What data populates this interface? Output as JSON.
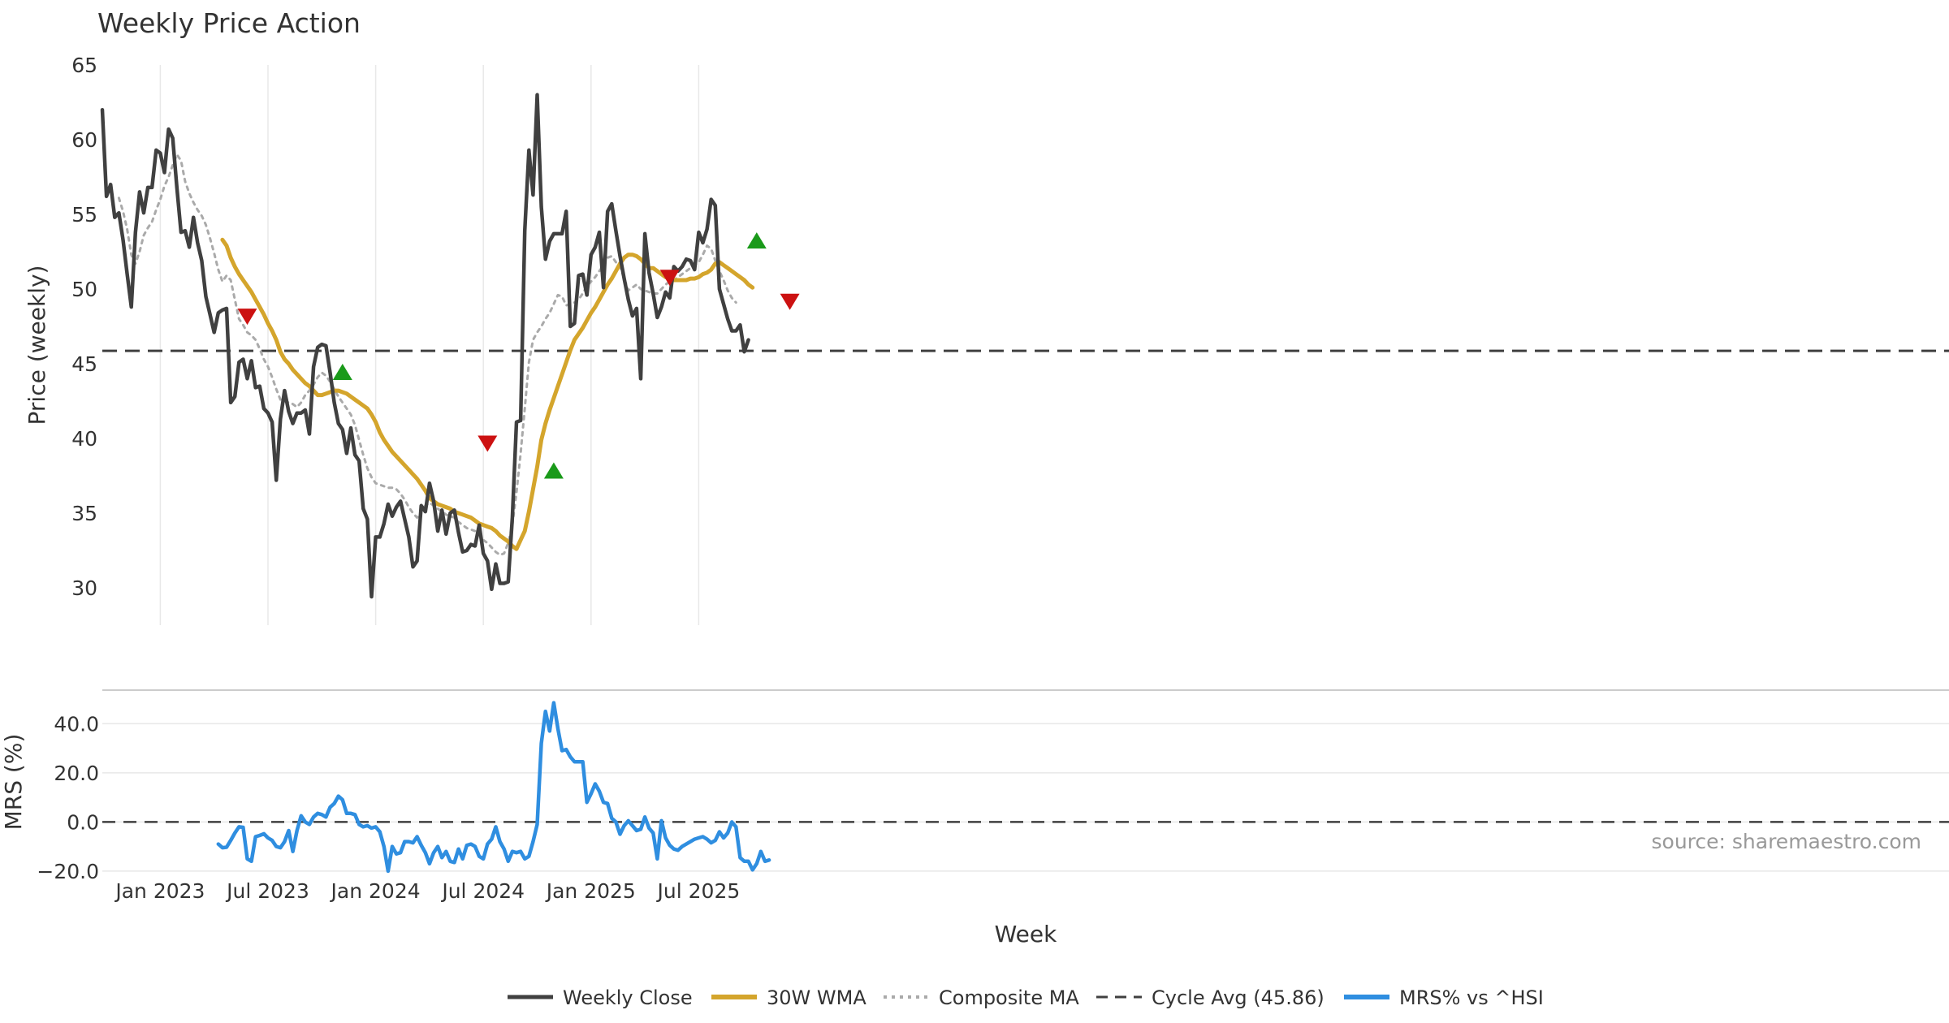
{
  "chart_data": [
    {
      "type": "line",
      "title": "Weekly Price Action",
      "ylabel": "Price (weekly)",
      "ylim": [
        27.5,
        65
      ],
      "yticks": [
        30,
        35,
        40,
        45,
        50,
        55,
        60,
        65
      ],
      "x_start_week_index": 0,
      "cycle_avg": 45.86,
      "series": [
        {
          "name": "Weekly Close",
          "color": "#404040",
          "start": 0,
          "values": [
            62.0,
            56.2,
            57.0,
            54.8,
            55.1,
            53.3,
            51.0,
            48.8,
            53.8,
            56.5,
            55.1,
            56.8,
            56.8,
            59.3,
            59.1,
            57.8,
            60.7,
            60.1,
            56.8,
            53.8,
            53.9,
            52.8,
            54.8,
            53.1,
            51.9,
            49.5,
            48.3,
            47.1,
            48.4,
            48.6,
            48.7,
            42.4,
            42.8,
            45.1,
            45.3,
            44.0,
            45.2,
            43.4,
            43.5,
            42.0,
            41.7,
            41.1,
            37.2,
            41.3,
            43.2,
            41.8,
            41.0,
            41.7,
            41.7,
            41.9,
            40.3,
            44.8,
            46.1,
            46.3,
            46.2,
            44.4,
            42.4,
            41.0,
            40.6,
            39.0,
            40.7,
            38.9,
            38.5,
            35.3,
            34.6,
            29.4,
            33.4,
            33.4,
            34.3,
            35.6,
            34.8,
            35.4,
            35.8,
            34.6,
            33.4,
            31.4,
            31.8,
            35.5,
            35.1,
            37.0,
            35.8,
            33.8,
            35.2,
            33.6,
            35.0,
            35.2,
            33.7,
            32.4,
            32.5,
            32.9,
            32.8,
            34.2,
            32.3,
            31.8,
            29.9,
            31.6,
            30.3,
            30.3,
            30.4,
            34.7,
            41.1,
            41.2,
            53.9,
            59.3,
            56.3,
            63.0,
            55.5,
            52.0,
            53.2,
            53.7,
            53.7,
            53.7,
            55.2,
            47.5,
            47.7,
            50.9,
            51.0,
            49.6,
            52.3,
            52.8,
            53.8,
            50.1,
            55.2,
            55.7,
            53.9,
            52.2,
            50.7,
            49.3,
            48.2,
            48.7,
            44.0,
            53.7,
            51.1,
            49.7,
            48.1,
            48.8,
            49.8,
            49.4,
            51.5,
            51.2,
            51.5,
            52.0,
            51.9,
            51.3,
            53.8,
            53.1,
            54.0,
            56.0,
            55.6,
            50.0,
            49.0,
            48.0,
            47.2,
            47.2,
            47.6,
            45.8,
            46.6
          ]
        },
        {
          "name": "30W WMA",
          "color": "#d4a52c",
          "start": 29,
          "values": [
            53.3,
            52.9,
            52.1,
            51.5,
            51.0,
            50.6,
            50.2,
            49.8,
            49.3,
            48.8,
            48.3,
            47.7,
            47.2,
            46.6,
            45.8,
            45.3,
            45.0,
            44.6,
            44.3,
            44.0,
            43.7,
            43.5,
            43.2,
            42.9,
            42.9,
            43.0,
            43.1,
            43.2,
            43.2,
            43.1,
            43.0,
            42.8,
            42.6,
            42.4,
            42.2,
            42.0,
            41.6,
            41.1,
            40.4,
            39.9,
            39.5,
            39.1,
            38.8,
            38.5,
            38.2,
            37.9,
            37.6,
            37.3,
            36.9,
            36.5,
            36.0,
            35.8,
            35.6,
            35.5,
            35.4,
            35.3,
            35.1,
            35.0,
            34.9,
            34.8,
            34.7,
            34.5,
            34.3,
            34.2,
            34.1,
            34.0,
            33.8,
            33.5,
            33.3,
            33.1,
            32.8,
            32.6,
            33.2,
            33.8,
            35.1,
            36.6,
            38.1,
            39.9,
            41.0,
            41.9,
            42.7,
            43.5,
            44.3,
            45.1,
            45.9,
            46.6,
            47.0,
            47.4,
            47.9,
            48.4,
            48.8,
            49.3,
            49.8,
            50.3,
            50.7,
            51.2,
            51.7,
            52.1,
            52.3,
            52.3,
            52.2,
            52.0,
            51.7,
            51.4,
            51.4,
            51.2,
            51.0,
            50.8,
            50.7,
            50.6,
            50.6,
            50.6,
            50.6,
            50.7,
            50.7,
            50.8,
            51.0,
            51.1,
            51.3,
            51.7,
            51.8,
            51.6,
            51.4,
            51.2,
            51.0,
            50.8,
            50.6,
            50.3,
            50.1
          ]
        },
        {
          "name": "Composite MA",
          "color": "#aaaaaa",
          "start": 4,
          "values": [
            56.1,
            55.2,
            54.0,
            52.3,
            51.7,
            52.5,
            53.6,
            54.1,
            54.5,
            55.3,
            56.0,
            56.9,
            57.5,
            58.3,
            59.0,
            58.6,
            57.2,
            56.4,
            55.8,
            55.3,
            54.9,
            54.3,
            53.4,
            52.4,
            51.3,
            50.5,
            50.9,
            50.6,
            49.3,
            48.0,
            47.6,
            47.1,
            46.9,
            46.6,
            46.0,
            45.3,
            44.8,
            44.1,
            43.3,
            42.6,
            42.5,
            42.4,
            42.3,
            42.1,
            42.4,
            42.9,
            43.2,
            43.6,
            44.1,
            44.4,
            44.2,
            43.8,
            43.3,
            42.8,
            42.4,
            42.0,
            41.6,
            40.9,
            39.9,
            38.9,
            38.0,
            37.4,
            37.0,
            36.9,
            36.8,
            36.7,
            36.7,
            36.6,
            36.3,
            35.9,
            35.4,
            35.0,
            34.7,
            35.1,
            35.5,
            35.7,
            35.5,
            35.3,
            35.1,
            34.9,
            34.8,
            34.7,
            34.4,
            34.2,
            34.0,
            33.9,
            33.8,
            33.6,
            33.2,
            33.0,
            32.7,
            32.4,
            32.2,
            32.3,
            33.0,
            34.2,
            36.4,
            39.0,
            42.0,
            45.1,
            46.6,
            47.1,
            47.5,
            48.0,
            48.4,
            49.0,
            49.6,
            49.5,
            48.9,
            49.0,
            49.1,
            49.3,
            49.7,
            50.2,
            50.5,
            50.8,
            51.2,
            51.6,
            52.1,
            52.2,
            51.8,
            51.5,
            50.7,
            49.9,
            50.1,
            50.3,
            50.0,
            49.9,
            49.8,
            49.7,
            49.7,
            50.0,
            50.3,
            50.5,
            50.6,
            50.8,
            51.0,
            51.2,
            51.4,
            51.6,
            51.8,
            52.3,
            52.9,
            52.7,
            51.9,
            51.2,
            50.6,
            49.9,
            49.4,
            49.1
          ]
        }
      ],
      "signals": [
        {
          "type": "sell",
          "week": 35,
          "value": 48.2
        },
        {
          "type": "buy",
          "week": 58,
          "value": 44.4
        },
        {
          "type": "sell",
          "week": 93,
          "value": 39.7
        },
        {
          "type": "buy",
          "week": 109,
          "value": 37.8
        },
        {
          "type": "sell",
          "week": 137,
          "value": 50.8
        },
        {
          "type": "buy",
          "week": 158,
          "value": 53.2
        },
        {
          "type": "sell",
          "week": 166,
          "value": 49.2
        }
      ]
    },
    {
      "type": "line",
      "ylabel": "MRS (%)",
      "xlabel": "Week",
      "ylim": [
        -24,
        52
      ],
      "yticks": [
        40.0,
        20.0,
        0.0,
        -20.0
      ],
      "ytick_labels": [
        "40.0",
        "20.0",
        "0.0",
        "−20.0"
      ],
      "x_tick_labels": [
        "Jan 2023",
        "Jul 2023",
        "Jan 2024",
        "Jul 2024",
        "Jan 2025",
        "Jul 2025"
      ],
      "series": [
        {
          "name": "MRS% vs ^HSI",
          "color": "#2f8ee0",
          "start": 28,
          "values": [
            -9.0,
            -10.5,
            -10.3,
            -7.5,
            -4.5,
            -2.0,
            -2.2,
            -15.0,
            -16.0,
            -6.0,
            -5.5,
            -4.8,
            -6.5,
            -7.5,
            -10.0,
            -10.5,
            -8.0,
            -3.5,
            -12.0,
            -3.5,
            2.5,
            0.0,
            -1.0,
            2.0,
            3.5,
            3.0,
            2.0,
            6.0,
            7.5,
            10.5,
            9.0,
            3.5,
            3.5,
            3.0,
            -1.0,
            -2.0,
            -1.5,
            -2.5,
            -2.0,
            -4.0,
            -10.0,
            -20.0,
            -10.0,
            -13.0,
            -12.5,
            -8.0,
            -8.0,
            -8.5,
            -6.0,
            -9.5,
            -12.5,
            -17.0,
            -12.5,
            -10.0,
            -14.5,
            -12.0,
            -16.0,
            -16.5,
            -11.0,
            -15.0,
            -9.5,
            -9.0,
            -10.0,
            -14.0,
            -15.0,
            -9.0,
            -7.0,
            -2.0,
            -8.0,
            -11.0,
            -16.0,
            -12.0,
            -12.5,
            -12.0,
            -15.0,
            -14.0,
            -8.0,
            -1.0,
            32.0,
            45.0,
            37.0,
            48.5,
            38.0,
            29.0,
            29.5,
            26.5,
            24.5,
            24.5,
            24.5,
            8.0,
            11.5,
            15.5,
            12.5,
            8.0,
            7.5,
            1.5,
            0.0,
            -5.0,
            -1.5,
            0.5,
            -1.5,
            -3.5,
            -3.0,
            2.0,
            -2.5,
            -4.5,
            -15.0,
            0.5,
            -6.5,
            -9.5,
            -11.0,
            -11.5,
            -10.0,
            -9.0,
            -8.0,
            -7.0,
            -6.5,
            -6.0,
            -7.0,
            -8.5,
            -7.5,
            -4.0,
            -6.5,
            -4.5,
            0.0,
            -2.0,
            -14.5,
            -16.0,
            -16.0,
            -19.5,
            -17.0,
            -12.0,
            -16.0,
            -15.5
          ]
        }
      ],
      "cycle_zero_line": 0.0
    }
  ],
  "legend": {
    "items": [
      {
        "label": "Weekly Close",
        "style": "solid-dark"
      },
      {
        "label": "30W WMA",
        "style": "solid-gold"
      },
      {
        "label": "Composite MA",
        "style": "dotted-gray"
      },
      {
        "label": "Cycle Avg (45.86)",
        "style": "dashed-dark"
      },
      {
        "label": "MRS% vs ^HSI",
        "style": "solid-blue"
      }
    ]
  },
  "source_note": "source: sharemaestro.com",
  "colors": {
    "close": "#404040",
    "wma": "#d4a52c",
    "composite": "#aaaaaa",
    "cycle": "#404040",
    "mrs": "#2f8ee0",
    "buy": "#1a9a1a",
    "sell": "#cc1111",
    "grid": "#e8e8e8"
  }
}
